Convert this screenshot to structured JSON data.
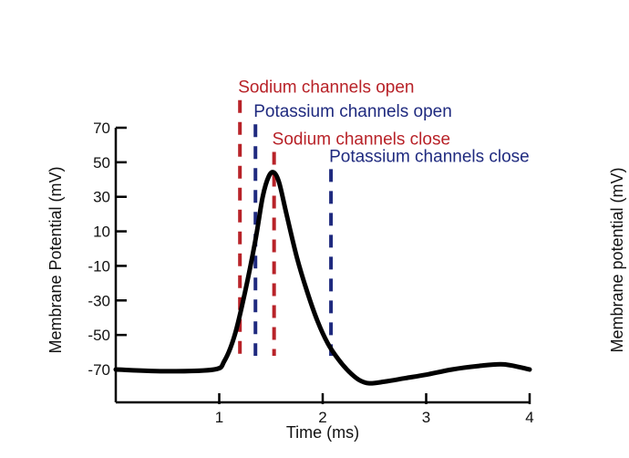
{
  "chart_data": {
    "type": "line",
    "xlabel": "Time (ms)",
    "ylabel": "Membrane Potential (mV)",
    "right_ylabel": "Membrane potential (mV)",
    "xlim": [
      0,
      4
    ],
    "ylim": [
      -80,
      70
    ],
    "x_ticks": [
      1,
      2,
      3,
      4
    ],
    "x_tick_labels": [
      "1",
      "2",
      "3",
      "4"
    ],
    "y_ticks": [
      70,
      50,
      30,
      10,
      -10,
      -30,
      -50,
      -70
    ],
    "y_tick_labels": [
      "70",
      "50",
      "30",
      "10",
      "-10",
      "-30",
      "-50",
      "-70"
    ],
    "series": [
      {
        "color": "#000000",
        "x": [
          0,
          0.5,
          0.95,
          1.05,
          1.15,
          1.25,
          1.35,
          1.42,
          1.48,
          1.53,
          1.58,
          1.65,
          1.75,
          1.85,
          1.95,
          2.05,
          2.15,
          2.25,
          2.35,
          2.45,
          2.6,
          2.8,
          3.0,
          3.25,
          3.5,
          3.75,
          4.0
        ],
        "y": [
          -70,
          -71,
          -70,
          -65,
          -50,
          -25,
          5,
          30,
          42,
          44,
          38,
          20,
          -5,
          -25,
          -42,
          -55,
          -64,
          -71,
          -76,
          -78,
          -77,
          -75,
          -73,
          -70,
          -68,
          -67,
          -70
        ]
      }
    ],
    "events": [
      {
        "label": "Sodium channels open",
        "x": 1.2,
        "y_top": 86,
        "color": "#b82228"
      },
      {
        "label": "Potassium channels open",
        "x": 1.35,
        "y_top": 72,
        "color": "#1f2a7f"
      },
      {
        "label": "Sodium channels close",
        "x": 1.53,
        "y_top": 56,
        "color": "#b82228"
      },
      {
        "label": "Potassium channels close",
        "x": 2.08,
        "y_top": 46,
        "color": "#1f2a7f"
      }
    ],
    "grid": false
  }
}
